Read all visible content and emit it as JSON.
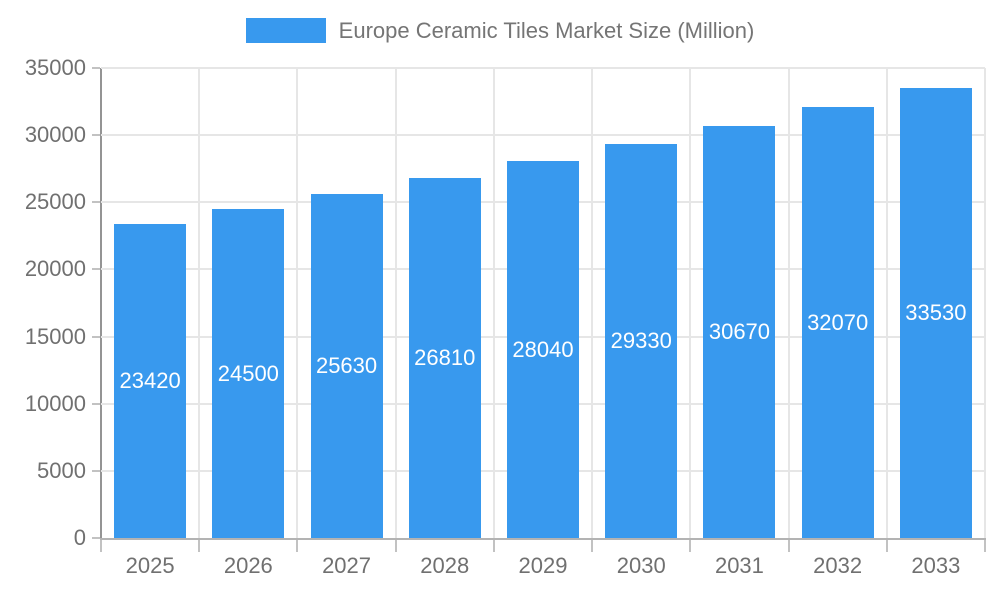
{
  "chart_data": {
    "type": "bar",
    "title": "Europe Ceramic Tiles Market Size (Million)",
    "legend": [
      {
        "label": "Europe Ceramic Tiles Market Size (Million)",
        "position": "top"
      }
    ],
    "categories": [
      "2025",
      "2026",
      "2027",
      "2028",
      "2029",
      "2030",
      "2031",
      "2032",
      "2033"
    ],
    "series": [
      {
        "name": "Europe Ceramic Tiles Market Size (Million)",
        "values": [
          23420,
          24500,
          25630,
          26810,
          28040,
          29330,
          30670,
          32070,
          33530
        ]
      }
    ],
    "value_labels_shown": true,
    "xlabel": "",
    "ylabel": "",
    "ylim": [
      0,
      35000
    ],
    "yticks": [
      0,
      5000,
      10000,
      15000,
      20000,
      25000,
      30000,
      35000
    ],
    "grid": true,
    "colors": {
      "bar": "#3899EE",
      "grid": "#E6E6E6",
      "tick": "#C2C2C2",
      "axis_text": "#707070",
      "legend_text": "#757575",
      "bar_label_text": "#FFFFFF"
    }
  }
}
